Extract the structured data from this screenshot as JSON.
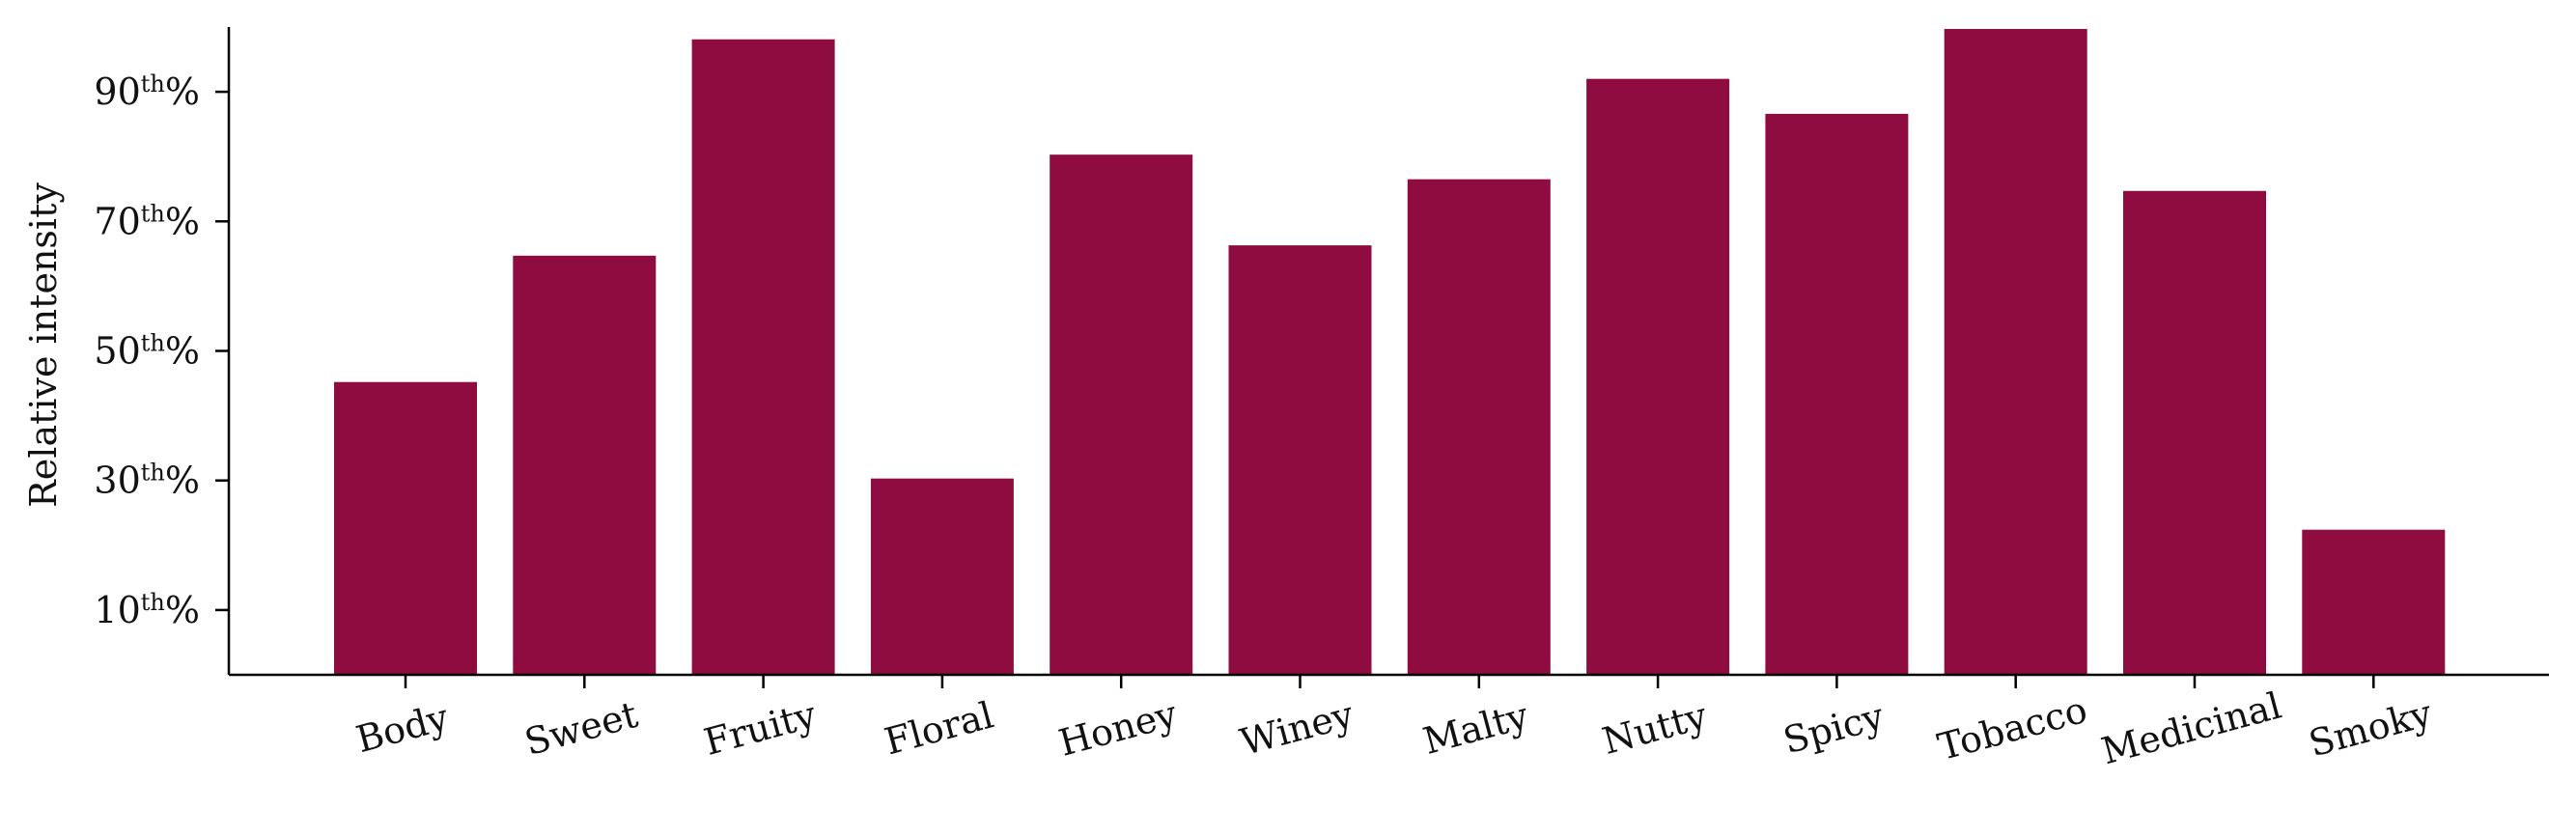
{
  "chart_data": {
    "type": "bar",
    "title": "",
    "xlabel": "",
    "ylabel": "Relative intensity",
    "categories": [
      "Body",
      "Sweet",
      "Fruity",
      "Floral",
      "Honey",
      "Winey",
      "Malty",
      "Nutty",
      "Spicy",
      "Tobacco",
      "Medicinal",
      "Smoky"
    ],
    "values": [
      45.2,
      64.7,
      98.1,
      30.3,
      80.3,
      66.3,
      76.5,
      92.0,
      86.6,
      99.7,
      74.7,
      22.4
    ],
    "ylim": [
      0,
      100
    ],
    "yticks": [
      {
        "value": 10,
        "base": "10",
        "sup": "th",
        "suffix": "%"
      },
      {
        "value": 30,
        "base": "30",
        "sup": "th",
        "suffix": "%"
      },
      {
        "value": 50,
        "base": "50",
        "sup": "th",
        "suffix": "%"
      },
      {
        "value": 70,
        "base": "70",
        "sup": "th",
        "suffix": "%"
      },
      {
        "value": 90,
        "base": "90",
        "sup": "th",
        "suffix": "%"
      }
    ],
    "grid": false,
    "legend": "none",
    "bar_color": "#8e0c3f"
  }
}
